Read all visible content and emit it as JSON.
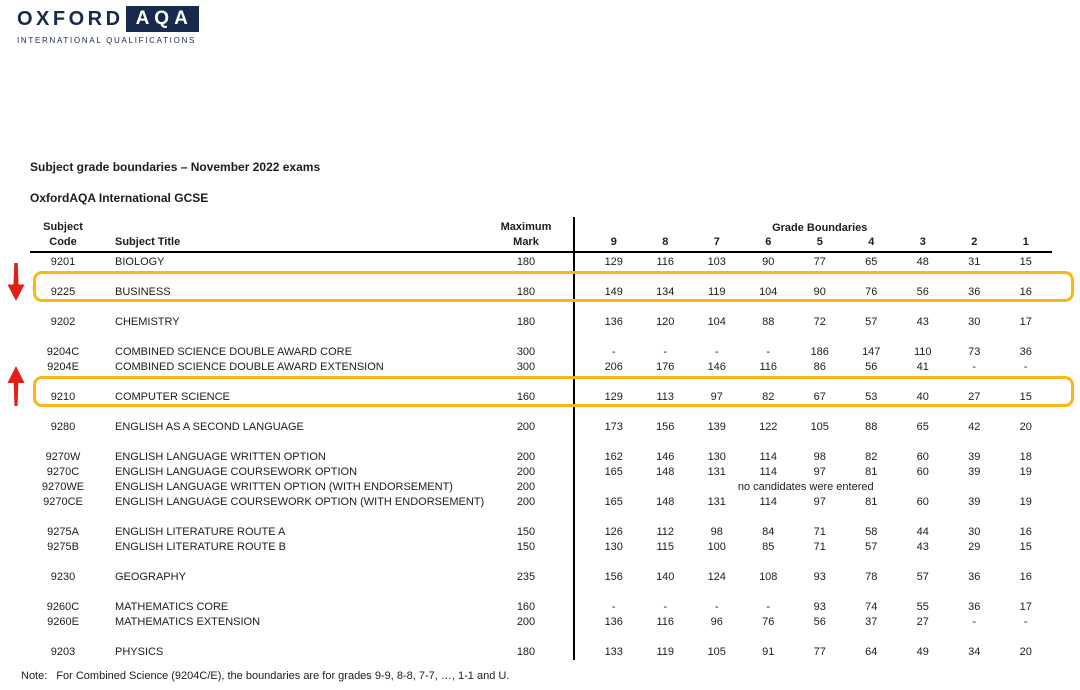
{
  "colors": {
    "navy": "#17294d",
    "highlight": "#FBB514",
    "arrow_red": "#E02015"
  },
  "logo": {
    "wordmark": "OXFORD",
    "box": "AQA",
    "subtitle": "INTERNATIONAL QUALIFICATIONS"
  },
  "page": {
    "title": "Subject grade boundaries – November 2022 exams",
    "subtitle": "OxfordAQA International GCSE",
    "note_label": "Note:",
    "note_text": "For Combined Science (9204C/E), the boundaries are for grades 9-9, 8-8, 7-7, …, 1-1 and U."
  },
  "table": {
    "headers": {
      "code_line1": "Subject",
      "code_line2": "Code",
      "title_label": "Subject Title",
      "max_line1": "Maximum",
      "max_line2": "Mark",
      "grade_boundaries": "Grade Boundaries",
      "grades": [
        "9",
        "8",
        "7",
        "6",
        "5",
        "4",
        "3",
        "2",
        "1"
      ]
    },
    "groups": [
      {
        "highlight": false,
        "rows": [
          {
            "code": "9201",
            "title": "BIOLOGY",
            "max": "180",
            "values": [
              "129",
              "116",
              "103",
              "90",
              "77",
              "65",
              "48",
              "31",
              "15"
            ]
          }
        ]
      },
      {
        "highlight": true,
        "arrow": "down",
        "rows": [
          {
            "code": "9225",
            "title": "BUSINESS",
            "max": "180",
            "values": [
              "149",
              "134",
              "119",
              "104",
              "90",
              "76",
              "56",
              "36",
              "16"
            ]
          }
        ]
      },
      {
        "highlight": false,
        "rows": [
          {
            "code": "9202",
            "title": "CHEMISTRY",
            "max": "180",
            "values": [
              "136",
              "120",
              "104",
              "88",
              "72",
              "57",
              "43",
              "30",
              "17"
            ]
          }
        ]
      },
      {
        "highlight": false,
        "rows": [
          {
            "code": "9204C",
            "title": "COMBINED SCIENCE DOUBLE AWARD CORE",
            "max": "300",
            "values": [
              "-",
              "-",
              "-",
              "-",
              "186",
              "147",
              "110",
              "73",
              "36"
            ]
          },
          {
            "code": "9204E",
            "title": "COMBINED SCIENCE DOUBLE AWARD EXTENSION",
            "max": "300",
            "values": [
              "206",
              "176",
              "146",
              "116",
              "86",
              "56",
              "41",
              "-",
              "-"
            ]
          }
        ]
      },
      {
        "highlight": true,
        "arrow": "up",
        "rows": [
          {
            "code": "9210",
            "title": "COMPUTER SCIENCE",
            "max": "160",
            "values": [
              "129",
              "113",
              "97",
              "82",
              "67",
              "53",
              "40",
              "27",
              "15"
            ]
          }
        ]
      },
      {
        "highlight": false,
        "rows": [
          {
            "code": "9280",
            "title": "ENGLISH AS A SECOND LANGUAGE",
            "max": "200",
            "values": [
              "173",
              "156",
              "139",
              "122",
              "105",
              "88",
              "65",
              "42",
              "20"
            ]
          }
        ]
      },
      {
        "highlight": false,
        "rows": [
          {
            "code": "9270W",
            "title": "ENGLISH LANGUAGE WRITTEN OPTION",
            "max": "200",
            "values": [
              "162",
              "146",
              "130",
              "114",
              "98",
              "82",
              "60",
              "39",
              "18"
            ]
          },
          {
            "code": "9270C",
            "title": "ENGLISH LANGUAGE COURSEWORK OPTION",
            "max": "200",
            "values": [
              "165",
              "148",
              "131",
              "114",
              "97",
              "81",
              "60",
              "39",
              "19"
            ]
          },
          {
            "code": "9270WE",
            "title": "ENGLISH LANGUAGE WRITTEN OPTION (WITH ENDORSEMENT)",
            "max": "200",
            "span_text": "no candidates were entered"
          },
          {
            "code": "9270CE",
            "title": "ENGLISH LANGUAGE COURSEWORK OPTION (WITH ENDORSEMENT)",
            "max": "200",
            "values": [
              "165",
              "148",
              "131",
              "114",
              "97",
              "81",
              "60",
              "39",
              "19"
            ]
          }
        ]
      },
      {
        "highlight": false,
        "rows": [
          {
            "code": "9275A",
            "title": "ENGLISH LITERATURE ROUTE A",
            "max": "150",
            "values": [
              "126",
              "112",
              "98",
              "84",
              "71",
              "58",
              "44",
              "30",
              "16"
            ]
          },
          {
            "code": "9275B",
            "title": "ENGLISH LITERATURE ROUTE B",
            "max": "150",
            "values": [
              "130",
              "115",
              "100",
              "85",
              "71",
              "57",
              "43",
              "29",
              "15"
            ]
          }
        ]
      },
      {
        "highlight": false,
        "rows": [
          {
            "code": "9230",
            "title": "GEOGRAPHY",
            "max": "235",
            "values": [
              "156",
              "140",
              "124",
              "108",
              "93",
              "78",
              "57",
              "36",
              "16"
            ]
          }
        ]
      },
      {
        "highlight": false,
        "rows": [
          {
            "code": "9260C",
            "title": "MATHEMATICS CORE",
            "max": "160",
            "values": [
              "-",
              "-",
              "-",
              "-",
              "93",
              "74",
              "55",
              "36",
              "17"
            ]
          },
          {
            "code": "9260E",
            "title": "MATHEMATICS EXTENSION",
            "max": "200",
            "values": [
              "136",
              "116",
              "96",
              "76",
              "56",
              "37",
              "27",
              "-",
              "-"
            ]
          }
        ]
      },
      {
        "highlight": false,
        "rows": [
          {
            "code": "9203",
            "title": "PHYSICS",
            "max": "180",
            "values": [
              "133",
              "119",
              "105",
              "91",
              "77",
              "64",
              "49",
              "34",
              "20"
            ]
          }
        ]
      }
    ]
  }
}
